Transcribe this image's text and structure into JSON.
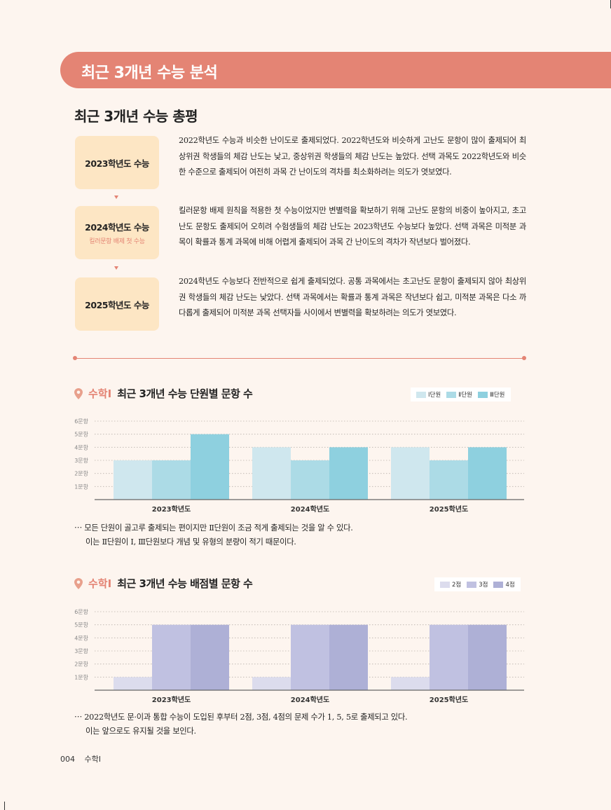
{
  "header": {
    "title": "최근 3개년 수능 분석"
  },
  "summary": {
    "title": "최근 3개년 수능 총평",
    "years": [
      {
        "label": "2023학년도 수능",
        "sub": ""
      },
      {
        "label": "2024학년도 수능",
        "sub": "킬러문항 배제 첫 수능"
      },
      {
        "label": "2025학년도 수능",
        "sub": ""
      }
    ],
    "paragraphs": [
      "2022학년도 수능과 비슷한 난이도로 출제되었다. 2022학년도와 비슷하게 고난도 문항이 많이 출제되어 최상위권 학생들의 체감 난도는 낮고, 중상위권 학생들의 체감 난도는 높았다. 선택 과목도 2022학년도와 비슷한 수준으로 출제되어 여전히 과목 간 난이도의 격차를 최소화하려는 의도가 엿보였다.",
      "킬러문항 배제 원칙을 적용한 첫 수능이었지만 변별력을 확보하기 위해 고난도 문항의 비중이 높아지고, 초고난도 문항도 출제되어 오히려 수험생들의 체감 난도는 2023학년도 수능보다 높았다. 선택 과목은 미적분 과목이 확률과 통계 과목에 비해 어렵게 출제되어 과목 간 난이도의 격차가 작년보다 벌어졌다.",
      "2024학년도 수능보다 전반적으로 쉽게 출제되었다. 공통 과목에서는 초고난도 문항이 출제되지 않아 최상위권 학생들의 체감 난도는 낮았다. 선택 과목에서는 확률과 통계 과목은 작년보다 쉽고, 미적분 과목은 다소 까다롭게 출제되어 미적분 과목 선택자들 사이에서 변별력을 확보하려는 의도가 엿보였다."
    ]
  },
  "chart1": {
    "subject": "수학Ⅰ",
    "title": "최근 3개년 수능 단원별 문항 수",
    "note_lines": [
      "⋯ 모든 단원이 골고루 출제되는 편이지만 Ⅱ단원이 조금 적게 출제되는 것을 알 수 있다.",
      "이는 Ⅱ단원이 Ⅰ, Ⅲ단원보다 개념 및 유형의 분량이 적기 때문이다."
    ]
  },
  "chart2": {
    "subject": "수학Ⅰ",
    "title": "최근 3개년 수능 배점별 문항 수",
    "note_lines": [
      "⋯ 2022학년도 문·이과 통합 수능이 도입된 후부터 2점, 3점, 4점의 문제 수가 1, 5, 5로 출제되고 있다.",
      "이는 앞으로도 유지될 것을 보인다."
    ]
  },
  "chart_data": [
    {
      "type": "bar",
      "title": "최근 3개년 수능 단원별 문항 수",
      "categories": [
        "2023학년도",
        "2024학년도",
        "2025학년도"
      ],
      "series": [
        {
          "name": "Ⅰ단원",
          "values": [
            3,
            4,
            4
          ],
          "color": "#cfe7ee"
        },
        {
          "name": "Ⅱ단원",
          "values": [
            3,
            3,
            3
          ],
          "color": "#acdbe6"
        },
        {
          "name": "Ⅲ단원",
          "values": [
            5,
            4,
            4
          ],
          "color": "#8ed0df"
        }
      ],
      "y_ticks": [
        "1문항",
        "2문항",
        "3문항",
        "4문항",
        "5문항",
        "6문항"
      ],
      "ylim": [
        0,
        6
      ],
      "grid": true,
      "legend": "top-right"
    },
    {
      "type": "bar",
      "title": "최근 3개년 수능 배점별 문항 수",
      "categories": [
        "2023학년도",
        "2024학년도",
        "2025학년도"
      ],
      "series": [
        {
          "name": "2점",
          "values": [
            1,
            1,
            1
          ],
          "color": "#dcdced"
        },
        {
          "name": "3점",
          "values": [
            5,
            5,
            5
          ],
          "color": "#c0c1e1"
        },
        {
          "name": "4점",
          "values": [
            5,
            5,
            5
          ],
          "color": "#aeb0d6"
        }
      ],
      "y_ticks": [
        "1문항",
        "2문항",
        "3문항",
        "4문항",
        "5문항",
        "6문항"
      ],
      "ylim": [
        0,
        6
      ],
      "grid": true,
      "legend": "top-right"
    }
  ],
  "footer": {
    "page": "004",
    "subject": "수학Ⅰ"
  }
}
